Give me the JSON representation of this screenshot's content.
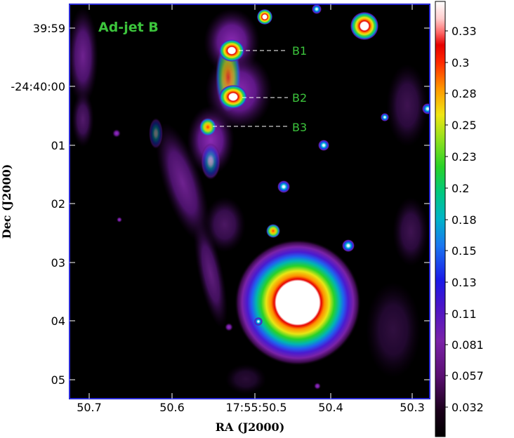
{
  "figure": {
    "panel_title": "Ad-jet B",
    "xlabel": "RA (J2000)",
    "ylabel": "Dec (J2000)",
    "x_ticks": [
      "50.7",
      "50.6",
      "17:55:50.5",
      "50.4",
      "50.3"
    ],
    "y_ticks": [
      "39:59",
      "-24:40:00",
      "01",
      "02",
      "03",
      "04",
      "05"
    ],
    "annotations": [
      "B1",
      "B2",
      "B3"
    ],
    "colorbar_ticks": [
      "0.33",
      "0.3",
      "0.28",
      "0.25",
      "0.23",
      "0.2",
      "0.18",
      "0.15",
      "0.13",
      "0.11",
      "0.081",
      "0.057",
      "0.032"
    ],
    "colors": {
      "frame": "#2a2ad6",
      "title": "#3cc43c",
      "annotation": "#3cc43c",
      "background": "#000000"
    }
  }
}
